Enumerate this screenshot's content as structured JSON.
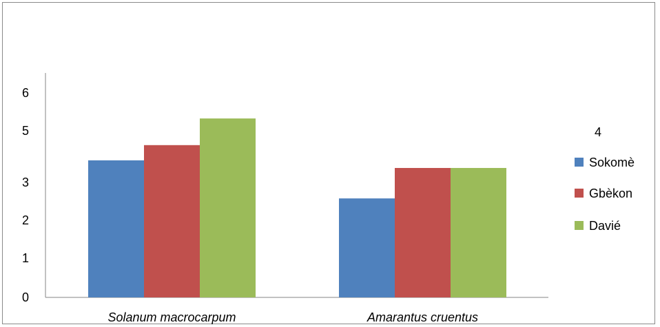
{
  "chart_data": {
    "type": "bar",
    "categories": [
      "Solanum macrocarpum",
      "Amarantus cruentus"
    ],
    "series": [
      {
        "name": "Sokomè",
        "color": "#4F81BD",
        "values": [
          3.6,
          2.6
        ]
      },
      {
        "name": "Gbèkon",
        "color": "#C0504D",
        "values": [
          4.0,
          3.4
        ]
      },
      {
        "name": "Davié",
        "color": "#9BBB59",
        "values": [
          4.7,
          3.4
        ]
      }
    ],
    "y_ticks": [
      "0",
      "1",
      "2",
      "3",
      "5",
      "6"
    ],
    "legend_header": "4",
    "legend_position": "right",
    "grid": false,
    "ylim": [
      0,
      6
    ]
  }
}
